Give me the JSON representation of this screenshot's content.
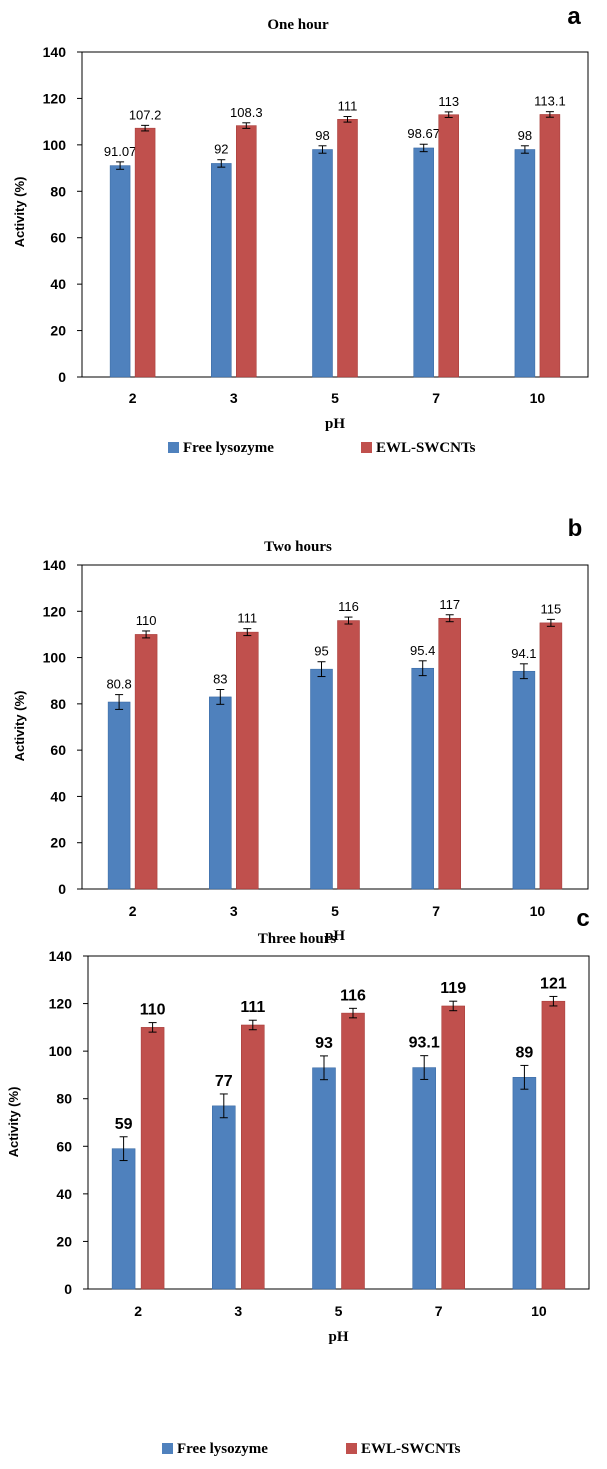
{
  "chart_data": [
    {
      "type": "bar",
      "panel_label": "a",
      "title": "One hour",
      "xlabel": "pH",
      "ylabel": "Activity (%)",
      "ylim": [
        0,
        140
      ],
      "yticks": [
        0,
        20,
        40,
        60,
        80,
        100,
        120,
        140
      ],
      "grid": false,
      "legend": "bottom",
      "categories": [
        "2",
        "3",
        "5",
        "7",
        "10"
      ],
      "series": [
        {
          "name": "Free lysozyme",
          "color": "#4f81bd",
          "values": [
            91.07,
            92,
            98,
            98.67,
            98
          ],
          "labels": [
            "91.07",
            "92",
            "98",
            "98.67",
            "98"
          ],
          "errors": [
            1.6,
            1.6,
            1.6,
            1.6,
            1.6
          ]
        },
        {
          "name": "EWL-SWCNTs",
          "color": "#c0504d",
          "values": [
            107.2,
            108.3,
            111,
            113,
            113.1
          ],
          "labels": [
            "107.2",
            "108.3",
            "111",
            "113",
            "113.1"
          ],
          "errors": [
            1.2,
            1.2,
            1.2,
            1.2,
            1.2
          ]
        }
      ]
    },
    {
      "type": "bar",
      "panel_label": "b",
      "title": "Two hours",
      "xlabel": "pH",
      "ylabel": "Activity (%)",
      "ylim": [
        0,
        140
      ],
      "yticks": [
        0,
        20,
        40,
        60,
        80,
        100,
        120,
        140
      ],
      "grid": false,
      "legend": "none",
      "categories": [
        "2",
        "3",
        "5",
        "7",
        "10"
      ],
      "series": [
        {
          "name": "Free lysozyme",
          "color": "#4f81bd",
          "values": [
            80.8,
            83,
            95,
            95.4,
            94.1
          ],
          "labels": [
            "80.8",
            "83",
            "95",
            "95.4",
            "94.1"
          ],
          "errors": [
            3.2,
            3.2,
            3.2,
            3.2,
            3.2
          ]
        },
        {
          "name": "EWL-SWCNTs",
          "color": "#c0504d",
          "values": [
            110,
            111,
            116,
            117,
            115
          ],
          "labels": [
            "110",
            "111",
            "116",
            "117",
            "115"
          ],
          "errors": [
            1.5,
            1.5,
            1.5,
            1.5,
            1.5
          ]
        }
      ]
    },
    {
      "type": "bar",
      "panel_label": "c",
      "title": "Three hours",
      "xlabel": "pH",
      "ylabel": "Activity (%)",
      "ylim": [
        0,
        140
      ],
      "yticks": [
        0,
        20,
        40,
        60,
        80,
        100,
        120,
        140
      ],
      "grid": false,
      "legend": "bottom",
      "categories": [
        "2",
        "3",
        "5",
        "7",
        "10"
      ],
      "series": [
        {
          "name": "Free lysozyme",
          "color": "#4f81bd",
          "values": [
            59,
            77,
            93,
            93.1,
            89
          ],
          "labels": [
            "59",
            "77",
            "93",
            "93.1",
            "89"
          ],
          "errors": [
            5,
            5,
            5,
            5,
            5
          ]
        },
        {
          "name": "EWL-SWCNTs",
          "color": "#c0504d",
          "values": [
            110,
            111,
            116,
            119,
            121
          ],
          "labels": [
            "110",
            "111",
            "116",
            "119",
            "121"
          ],
          "errors": [
            2,
            2,
            2,
            2,
            2
          ]
        }
      ]
    }
  ]
}
